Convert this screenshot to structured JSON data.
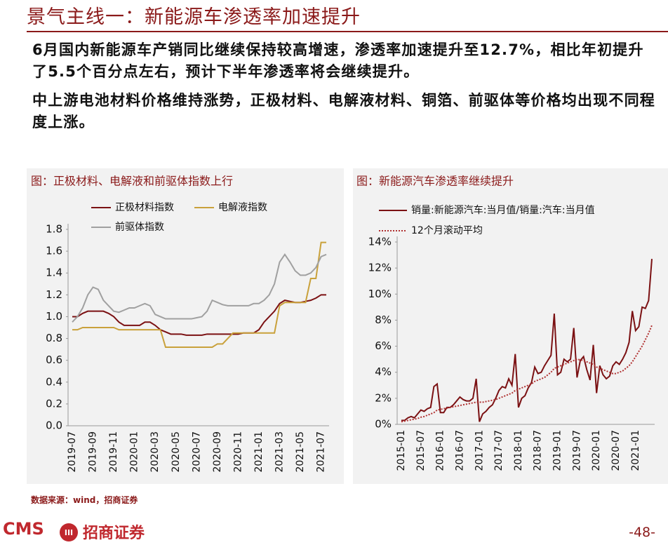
{
  "title": "景气主线一：新能源车渗透率加速提升",
  "paragraphs": [
    "6月国内新能源车产销同比继续保持较高增速，渗透率加速提升至12.7%，相比年初提升了5.5个百分点左右，预计下半年渗透率将会继续提升。",
    "中上游电池材料价格维持涨势，正极材料、电解液材料、铜箔、前驱体等价格均出现不同程度上涨。"
  ],
  "chart_data": [
    {
      "type": "line",
      "title": "图：正极材料、电解液和前驱体指数上行",
      "categories": [
        "2019-07",
        null,
        null,
        null,
        "2019-09",
        null,
        null,
        null,
        "2019-11",
        null,
        null,
        null,
        "2020-01",
        null,
        null,
        null,
        "2020-03",
        null,
        null,
        null,
        "2020-05",
        null,
        null,
        null,
        "2020-07",
        null,
        null,
        null,
        "2020-09",
        null,
        null,
        null,
        "2020-11",
        null,
        null,
        null,
        "2021-01",
        null,
        null,
        null,
        "2021-03",
        null,
        null,
        null,
        "2021-05",
        null,
        null,
        null,
        "2021-07",
        null
      ],
      "series": [
        {
          "name": "正极材料指数",
          "color": "#7b1113",
          "style": "solid",
          "values": [
            1.0,
            1.0,
            1.03,
            1.05,
            1.05,
            1.05,
            1.05,
            1.03,
            1.0,
            0.95,
            0.92,
            0.92,
            0.92,
            0.92,
            0.95,
            0.95,
            0.92,
            0.88,
            0.86,
            0.84,
            0.84,
            0.84,
            0.83,
            0.83,
            0.83,
            0.83,
            0.84,
            0.84,
            0.84,
            0.84,
            0.84,
            0.84,
            0.84,
            0.85,
            0.85,
            0.85,
            0.88,
            0.95,
            1.0,
            1.05,
            1.12,
            1.15,
            1.14,
            1.13,
            1.13,
            1.14,
            1.15,
            1.17,
            1.2,
            1.2
          ]
        },
        {
          "name": "电解液指数",
          "color": "#c9a13b",
          "style": "solid",
          "values": [
            0.88,
            0.88,
            0.9,
            0.9,
            0.9,
            0.9,
            0.9,
            0.9,
            0.9,
            0.88,
            0.88,
            0.88,
            0.88,
            0.88,
            0.88,
            0.88,
            0.88,
            0.88,
            0.72,
            0.72,
            0.72,
            0.72,
            0.72,
            0.72,
            0.72,
            0.72,
            0.72,
            0.72,
            0.75,
            0.75,
            0.8,
            0.85,
            0.85,
            0.85,
            0.85,
            0.85,
            0.85,
            0.85,
            0.85,
            0.85,
            1.1,
            1.13,
            1.13,
            1.13,
            1.13,
            1.13,
            1.35,
            1.35,
            1.68,
            1.68
          ]
        },
        {
          "name": "前驱体指数",
          "color": "#a0a0a0",
          "style": "solid",
          "values": [
            0.95,
            1.0,
            1.08,
            1.2,
            1.27,
            1.25,
            1.15,
            1.1,
            1.05,
            1.04,
            1.06,
            1.08,
            1.08,
            1.1,
            1.12,
            1.1,
            1.02,
            1.0,
            0.98,
            0.98,
            0.98,
            0.98,
            0.98,
            0.98,
            0.99,
            1.0,
            1.05,
            1.15,
            1.13,
            1.11,
            1.1,
            1.1,
            1.1,
            1.1,
            1.1,
            1.12,
            1.12,
            1.15,
            1.2,
            1.3,
            1.5,
            1.57,
            1.5,
            1.42,
            1.38,
            1.38,
            1.4,
            1.45,
            1.55,
            1.57
          ]
        }
      ],
      "ylim": [
        0,
        1.8
      ],
      "yticks": [
        {
          "value": 0,
          "label": "0.0"
        },
        0.2,
        0.4,
        0.6,
        0.8,
        {
          "value": 1,
          "label": "1.0"
        },
        1.2,
        1.4,
        1.6,
        1.8
      ],
      "grid": false
    },
    {
      "type": "line",
      "title": "图：新能源汽车渗透率继续提升",
      "categories": [
        "2015-01",
        null,
        null,
        null,
        null,
        null,
        "2015-07",
        null,
        null,
        null,
        null,
        null,
        "2016-01",
        null,
        null,
        null,
        null,
        null,
        "2016-07",
        null,
        null,
        null,
        null,
        null,
        "2017-01",
        null,
        null,
        null,
        null,
        null,
        "2017-07",
        null,
        null,
        null,
        null,
        null,
        "2018-01",
        null,
        null,
        null,
        null,
        null,
        "2018-07",
        null,
        null,
        null,
        null,
        null,
        "2019-01",
        null,
        null,
        null,
        null,
        null,
        "2019-07",
        null,
        null,
        null,
        null,
        null,
        "2020-01",
        null,
        null,
        null,
        null,
        null,
        "2020-07",
        null,
        null,
        null,
        null,
        null,
        "2021-01",
        null,
        null,
        null,
        null,
        null
      ],
      "series": [
        {
          "name": "销量:新能源汽车:当月值/销量:汽车:当月值",
          "color": "#7b1113",
          "style": "solid",
          "values": [
            0.3,
            0.3,
            0.5,
            0.6,
            0.5,
            0.8,
            1.1,
            1.0,
            1.2,
            1.3,
            2.9,
            3.1,
            0.9,
            0.9,
            1.3,
            1.3,
            1.5,
            1.8,
            2.1,
            1.9,
            1.8,
            1.8,
            2.0,
            3.5,
            0.2,
            0.8,
            1.0,
            1.3,
            1.5,
            2.0,
            2.6,
            2.9,
            2.8,
            3.5,
            3.0,
            5.4,
            1.3,
            2.0,
            2.2,
            2.8,
            3.2,
            4.4,
            3.9,
            4.0,
            4.5,
            4.9,
            5.3,
            8.5,
            3.8,
            4.0,
            5.0,
            4.8,
            5.0,
            7.4,
            3.6,
            4.9,
            5.2,
            4.2,
            3.4,
            6.1,
            2.4,
            4.5,
            3.8,
            3.5,
            3.7,
            4.5,
            4.8,
            4.6,
            5.0,
            5.5,
            6.3,
            8.7,
            7.2,
            7.5,
            9.0,
            8.9,
            9.5,
            12.7
          ]
        },
        {
          "name": "12个月滚动平均",
          "color": "#b03030",
          "style": "dotted",
          "values": [
            0.2,
            0.25,
            0.3,
            0.35,
            0.4,
            0.45,
            0.55,
            0.6,
            0.7,
            0.8,
            0.9,
            1.1,
            1.15,
            1.2,
            1.25,
            1.3,
            1.35,
            1.4,
            1.45,
            1.5,
            1.55,
            1.6,
            1.65,
            1.7,
            1.7,
            1.7,
            1.75,
            1.8,
            1.85,
            1.9,
            2.0,
            2.1,
            2.2,
            2.3,
            2.4,
            2.6,
            2.7,
            2.8,
            2.9,
            3.0,
            3.1,
            3.3,
            3.4,
            3.5,
            3.6,
            3.8,
            4.0,
            4.3,
            4.4,
            4.5,
            4.6,
            4.7,
            4.8,
            4.9,
            5.0,
            4.95,
            4.9,
            4.8,
            4.7,
            4.6,
            4.4,
            4.3,
            4.2,
            4.1,
            4.0,
            3.9,
            3.9,
            4.0,
            4.1,
            4.3,
            4.5,
            4.8,
            5.2,
            5.6,
            6.0,
            6.5,
            7.0,
            7.6
          ]
        }
      ],
      "ylim": [
        0,
        14
      ],
      "yticks": [
        {
          "value": 0,
          "label": "0%"
        },
        {
          "value": 2,
          "label": "2%"
        },
        {
          "value": 4,
          "label": "4%"
        },
        {
          "value": 6,
          "label": "6%"
        },
        {
          "value": 8,
          "label": "8%"
        },
        {
          "value": 10,
          "label": "10%"
        },
        {
          "value": 12,
          "label": "12%"
        },
        {
          "value": 14,
          "label": "14%"
        }
      ],
      "grid": false
    }
  ],
  "source": "数据来源：wind，招商证券",
  "logo": {
    "left": "CMS",
    "right": "招商证券"
  },
  "page_number": "-48-"
}
